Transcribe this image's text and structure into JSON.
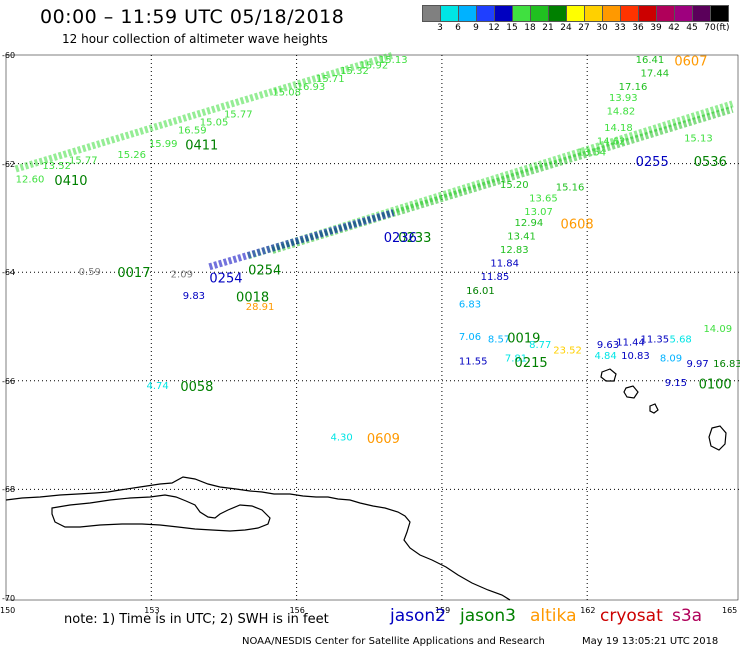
{
  "header": {
    "title": "00:00 – 11:59 UTC 05/18/2018",
    "subtitle": "12 hour collection of altimeter wave heights"
  },
  "color_scale": {
    "unit": "(ft)",
    "bins": [
      {
        "label": "",
        "color": "#808080"
      },
      {
        "label": "3",
        "color": "#00e5e5"
      },
      {
        "label": "6",
        "color": "#00b2ff"
      },
      {
        "label": "9",
        "color": "#1f3fff"
      },
      {
        "label": "12",
        "color": "#0000c0"
      },
      {
        "label": "15",
        "color": "#40e040"
      },
      {
        "label": "18",
        "color": "#20c020"
      },
      {
        "label": "21",
        "color": "#008000"
      },
      {
        "label": "24",
        "color": "#ffff00"
      },
      {
        "label": "27",
        "color": "#ffd000"
      },
      {
        "label": "30",
        "color": "#ff9900"
      },
      {
        "label": "33",
        "color": "#ff3300"
      },
      {
        "label": "36",
        "color": "#cc0000"
      },
      {
        "label": "39",
        "color": "#b0005a"
      },
      {
        "label": "42",
        "color": "#9e007e"
      },
      {
        "label": "45",
        "color": "#5a005a"
      },
      {
        "label": "70",
        "color": "#000000"
      }
    ]
  },
  "axes": {
    "lat_labels": [
      "-60",
      "-62",
      "-64",
      "-66",
      "-68",
      "-70"
    ],
    "lon_labels": [
      "150",
      "153",
      "156",
      "159",
      "162",
      "165"
    ]
  },
  "labels": [
    {
      "t": "15.13",
      "c": "#40e040",
      "lon": 157.7,
      "lat": -60.0,
      "s": 10
    },
    {
      "t": "16.41",
      "c": "#20c020",
      "lon": 163.0,
      "lat": -60.0,
      "s": 10
    },
    {
      "t": "0607",
      "c": "#ff9900",
      "lon": 163.8,
      "lat": -60.0,
      "s": 13
    },
    {
      "t": "17.44",
      "c": "#20c020",
      "lon": 163.1,
      "lat": -60.25,
      "s": 10
    },
    {
      "t": "17.16",
      "c": "#20c020",
      "lon": 162.65,
      "lat": -60.5,
      "s": 10
    },
    {
      "t": "13.93",
      "c": "#40e040",
      "lon": 162.45,
      "lat": -60.7,
      "s": 10
    },
    {
      "t": "14.82",
      "c": "#40e040",
      "lon": 162.4,
      "lat": -60.95,
      "s": 10
    },
    {
      "t": "14.18",
      "c": "#40e040",
      "lon": 162.35,
      "lat": -61.25,
      "s": 10
    },
    {
      "t": "14.62",
      "c": "#40e040",
      "lon": 162.2,
      "lat": -61.5,
      "s": 10
    },
    {
      "t": "13.54",
      "c": "#40e040",
      "lon": 161.8,
      "lat": -61.7,
      "s": 10
    },
    {
      "t": "15.26",
      "c": "#40e040",
      "lon": 152.3,
      "lat": -61.75,
      "s": 10
    },
    {
      "t": "15.99",
      "c": "#40e040",
      "lon": 152.95,
      "lat": -61.55,
      "s": 10
    },
    {
      "t": "16.59",
      "c": "#40e040",
      "lon": 153.55,
      "lat": -61.3,
      "s": 10
    },
    {
      "t": "15.05",
      "c": "#40e040",
      "lon": 154.0,
      "lat": -61.15,
      "s": 10
    },
    {
      "t": "15.77",
      "c": "#40e040",
      "lon": 154.5,
      "lat": -61.0,
      "s": 10
    },
    {
      "t": "15.08",
      "c": "#40e040",
      "lon": 155.5,
      "lat": -60.6,
      "s": 10
    },
    {
      "t": "16.93",
      "c": "#40e040",
      "lon": 156.0,
      "lat": -60.5,
      "s": 10
    },
    {
      "t": "15.71",
      "c": "#40e040",
      "lon": 156.4,
      "lat": -60.35,
      "s": 10
    },
    {
      "t": "15.32",
      "c": "#40e040",
      "lon": 156.9,
      "lat": -60.2,
      "s": 10
    },
    {
      "t": "15.92",
      "c": "#40e040",
      "lon": 157.3,
      "lat": -60.1,
      "s": 10
    },
    {
      "t": "0411",
      "c": "#008000",
      "lon": 153.7,
      "lat": -61.55,
      "s": 13
    },
    {
      "t": "12.60",
      "c": "#40e040",
      "lon": 150.2,
      "lat": -62.2,
      "s": 10
    },
    {
      "t": "13.52",
      "c": "#40e040",
      "lon": 150.75,
      "lat": -61.95,
      "s": 10
    },
    {
      "t": "15.77",
      "c": "#40e040",
      "lon": 151.3,
      "lat": -61.85,
      "s": 10
    },
    {
      "t": "0410",
      "c": "#008000",
      "lon": 151.0,
      "lat": -62.2,
      "s": 13
    },
    {
      "t": "15.20",
      "c": "#20c020",
      "lon": 160.2,
      "lat": -62.3,
      "s": 10
    },
    {
      "t": "15.16",
      "c": "#20c020",
      "lon": 161.35,
      "lat": -62.35,
      "s": 10
    },
    {
      "t": "13.65",
      "c": "#40e040",
      "lon": 160.8,
      "lat": -62.55,
      "s": 10
    },
    {
      "t": "13.07",
      "c": "#40e040",
      "lon": 160.7,
      "lat": -62.8,
      "s": 10
    },
    {
      "t": "12.94",
      "c": "#20c020",
      "lon": 160.5,
      "lat": -63.0,
      "s": 10
    },
    {
      "t": "0608",
      "c": "#ff9900",
      "lon": 161.45,
      "lat": -63.0,
      "s": 13
    },
    {
      "t": "13.41",
      "c": "#20c020",
      "lon": 160.35,
      "lat": -63.25,
      "s": 10
    },
    {
      "t": "12.83",
      "c": "#20c020",
      "lon": 160.2,
      "lat": -63.5,
      "s": 10
    },
    {
      "t": "11.84",
      "c": "#0000c0",
      "lon": 160.0,
      "lat": -63.75,
      "s": 10
    },
    {
      "t": "11.85",
      "c": "#0000c0",
      "lon": 159.8,
      "lat": -64.0,
      "s": 10
    },
    {
      "t": "16.01",
      "c": "#008000",
      "lon": 159.5,
      "lat": -64.25,
      "s": 10
    },
    {
      "t": "6.83",
      "c": "#00b2ff",
      "lon": 159.35,
      "lat": -64.5,
      "s": 10
    },
    {
      "t": "0536",
      "c": "#008000",
      "lon": 164.2,
      "lat": -61.85,
      "s": 13
    },
    {
      "t": "0255",
      "c": "#0000c0",
      "lon": 163.0,
      "lat": -61.85,
      "s": 13
    },
    {
      "t": "15.13",
      "c": "#40e040",
      "lon": 164.0,
      "lat": -61.45,
      "s": 10
    },
    {
      "t": "0233",
      "c": "#008000",
      "lon": 158.1,
      "lat": -63.25,
      "s": 13
    },
    {
      "t": "0236",
      "c": "#0000c0",
      "lon": 157.8,
      "lat": -63.25,
      "s": 13
    },
    {
      "t": "0.59",
      "c": "#808080",
      "lon": 151.5,
      "lat": -63.9,
      "s": 10
    },
    {
      "t": "0017",
      "c": "#008000",
      "lon": 152.3,
      "lat": -63.9,
      "s": 13
    },
    {
      "t": "2.09",
      "c": "#808080",
      "lon": 153.4,
      "lat": -63.95,
      "s": 10
    },
    {
      "t": "0254",
      "c": "#0000c0",
      "lon": 154.2,
      "lat": -64.0,
      "s": 13
    },
    {
      "t": "0254",
      "c": "#008000",
      "lon": 155.0,
      "lat": -63.85,
      "s": 13
    },
    {
      "t": "9.83",
      "c": "#0000c0",
      "lon": 153.65,
      "lat": -64.35,
      "s": 10
    },
    {
      "t": "0018",
      "c": "#008000",
      "lon": 154.75,
      "lat": -64.35,
      "s": 13
    },
    {
      "t": "28.91",
      "c": "#ff9900",
      "lon": 154.95,
      "lat": -64.55,
      "s": 10
    },
    {
      "t": "7.06",
      "c": "#00b2ff",
      "lon": 159.35,
      "lat": -65.1,
      "s": 10
    },
    {
      "t": "8.57",
      "c": "#00b2ff",
      "lon": 159.95,
      "lat": -65.15,
      "s": 10
    },
    {
      "t": "0019",
      "c": "#008000",
      "lon": 160.35,
      "lat": -65.1,
      "s": 13
    },
    {
      "t": "8.77",
      "c": "#00e5e5",
      "lon": 160.8,
      "lat": -65.25,
      "s": 10
    },
    {
      "t": "23.52",
      "c": "#ffd000",
      "lon": 161.3,
      "lat": -65.35,
      "s": 10
    },
    {
      "t": "11.55",
      "c": "#0000c0",
      "lon": 159.35,
      "lat": -65.55,
      "s": 10
    },
    {
      "t": "7.81",
      "c": "#00e5e5",
      "lon": 160.3,
      "lat": -65.5,
      "s": 10
    },
    {
      "t": "0215",
      "c": "#008000",
      "lon": 160.5,
      "lat": -65.55,
      "s": 13
    },
    {
      "t": "9.63",
      "c": "#0000c0",
      "lon": 162.2,
      "lat": -65.25,
      "s": 10
    },
    {
      "t": "11.44",
      "c": "#0000c0",
      "lon": 162.6,
      "lat": -65.2,
      "s": 10
    },
    {
      "t": "11.35",
      "c": "#0000c0",
      "lon": 163.1,
      "lat": -65.15,
      "s": 10
    },
    {
      "t": "5.68",
      "c": "#00e5e5",
      "lon": 163.7,
      "lat": -65.15,
      "s": 10
    },
    {
      "t": "4.84",
      "c": "#00e5e5",
      "lon": 162.15,
      "lat": -65.45,
      "s": 10
    },
    {
      "t": "10.83",
      "c": "#0000c0",
      "lon": 162.7,
      "lat": -65.45,
      "s": 10
    },
    {
      "t": "8.09",
      "c": "#00b2ff",
      "lon": 163.5,
      "lat": -65.5,
      "s": 10
    },
    {
      "t": "9.97",
      "c": "#0000c0",
      "lon": 164.05,
      "lat": -65.6,
      "s": 10
    },
    {
      "t": "14.09",
      "c": "#40e040",
      "lon": 164.4,
      "lat": -64.95,
      "s": 10
    },
    {
      "t": "16.83",
      "c": "#008000",
      "lon": 164.6,
      "lat": -65.6,
      "s": 10
    },
    {
      "t": "9.15",
      "c": "#0000c0",
      "lon": 163.6,
      "lat": -65.95,
      "s": 10
    },
    {
      "t": "0100",
      "c": "#008000",
      "lon": 164.3,
      "lat": -65.95,
      "s": 13
    },
    {
      "t": "4.74",
      "c": "#00e5e5",
      "lon": 152.9,
      "lat": -66.0,
      "s": 10
    },
    {
      "t": "0058",
      "c": "#008000",
      "lon": 153.6,
      "lat": -66.0,
      "s": 13
    },
    {
      "t": "4.30",
      "c": "#00e5e5",
      "lon": 156.7,
      "lat": -66.95,
      "s": 10
    },
    {
      "t": "0609",
      "c": "#ff9900",
      "lon": 157.45,
      "lat": -66.95,
      "s": 13
    }
  ],
  "footer": {
    "note": "note:  1) Time is in UTC;  2) SWH is in feet",
    "legend": [
      {
        "name": "jason2",
        "color": "#0000c0"
      },
      {
        "name": "jason3",
        "color": "#008000"
      },
      {
        "name": "altika",
        "color": "#ff9900"
      },
      {
        "name": "cryosat",
        "color": "#cc0000"
      },
      {
        "name": "s3a",
        "color": "#b0005a"
      }
    ],
    "credit": "NOAA/NESDIS Center for Satellite Applications and Research",
    "timestamp": "May 19 13:05:21 UTC 2018"
  }
}
